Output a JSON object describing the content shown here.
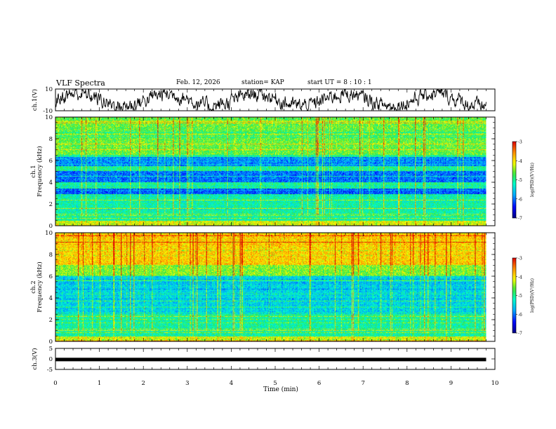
{
  "header": {
    "title": "VLF Spectra",
    "date": "Feb. 12, 2026",
    "station": "station= KAP",
    "start_time": "start  UT  =   8  : 10 : 1"
  },
  "chart_data": [
    {
      "type": "line",
      "name": "ch1-waveform",
      "ylabel": "ch.1(V)",
      "ylim": [
        -10,
        10
      ],
      "ytick_labels": [
        "10",
        "-10"
      ],
      "x_range_min": [
        0,
        9.8
      ],
      "description_of_values": "noisy voltage waveform fluctuating roughly between -8 and 9 V"
    },
    {
      "type": "heatmap",
      "name": "ch1-spectrogram",
      "ylabel": "ch.1\nFrequency  (kHz)",
      "ylim": [
        0,
        10
      ],
      "ytick_labels": [
        "0",
        "2",
        "4",
        "6",
        "8",
        "10"
      ],
      "colorbar": {
        "label": "log(PSD)(V²/Hz)",
        "range": [
          -7,
          -3
        ],
        "tick_labels": [
          "-3",
          "-4",
          "-5",
          "-6",
          "-7"
        ]
      },
      "bands": [
        {
          "from_khz": 5.5,
          "to_khz": 6.3,
          "level": "blue (about -6)"
        },
        {
          "from_khz": 4.0,
          "to_khz": 5.0,
          "level": "blue (about -6)"
        },
        {
          "from_khz": 2.9,
          "to_khz": 3.4,
          "level": "blue (about -6)"
        },
        {
          "from_khz": 6.5,
          "to_khz": 10.0,
          "level": "green-yellow (about -4.5)"
        },
        {
          "from_khz": 0.0,
          "to_khz": 2.8,
          "level": "cyan-green (about -5)"
        }
      ]
    },
    {
      "type": "heatmap",
      "name": "ch2-spectrogram",
      "ylabel": "ch.2\nFrequency  (kHz)",
      "ylim": [
        0,
        10
      ],
      "ytick_labels": [
        "0",
        "2",
        "4",
        "6",
        "8",
        "10"
      ],
      "colorbar": {
        "label": "log(PSD)(V²/Hz)",
        "range": [
          -7,
          -3
        ],
        "tick_labels": [
          "-3",
          "-4",
          "-5",
          "-6",
          "-7"
        ]
      },
      "bands": [
        {
          "from_khz": 2.5,
          "to_khz": 6.0,
          "level": "cyan-green (about -5.5)"
        },
        {
          "from_khz": 6.0,
          "to_khz": 10.0,
          "level": "yellow-red (about -4)"
        },
        {
          "from_khz": 0.0,
          "to_khz": 2.5,
          "level": "cyan-green (about -5.2)"
        }
      ]
    },
    {
      "type": "line",
      "name": "ch3-waveform",
      "ylabel": "ch.3(V)",
      "ylim": [
        -5,
        5
      ],
      "ytick_labels": [
        "5",
        "0",
        "-5"
      ],
      "level_v": -0.3,
      "description_of_values": "flat thick trace at about 0 V"
    }
  ],
  "x_axis": {
    "label": "Time  (min)",
    "range": [
      0,
      10
    ],
    "data_end": 9.8,
    "tick_labels": [
      "0",
      "1",
      "2",
      "3",
      "4",
      "5",
      "6",
      "7",
      "8",
      "9",
      "10"
    ]
  }
}
